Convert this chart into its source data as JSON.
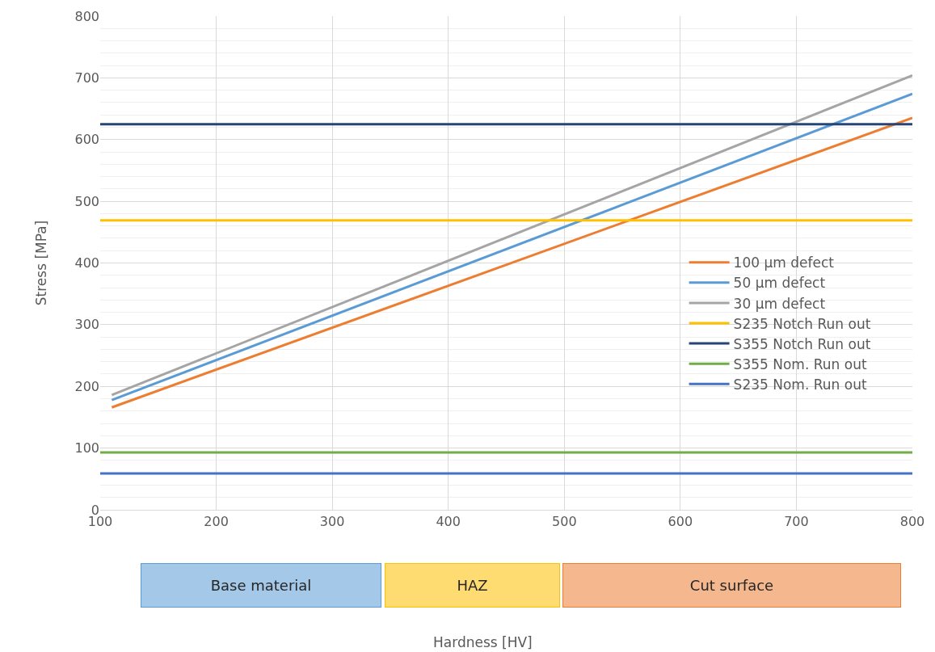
{
  "chart_data": {
    "type": "line",
    "ylabel": "Stress [MPa]",
    "xlim": [
      100,
      800
    ],
    "xticks": [
      100,
      200,
      300,
      400,
      500,
      600,
      700,
      800
    ],
    "ylim": [
      0,
      800
    ],
    "yticks": [
      0,
      100,
      200,
      300,
      400,
      500,
      600,
      700,
      800
    ],
    "grid": true,
    "legend": "right",
    "marker": "none",
    "line_style": "solid",
    "series": [
      {
        "name": "100 µm defect",
        "color": "#ed7d31",
        "x": [
          110,
          800
        ],
        "values": [
          166,
          635
        ]
      },
      {
        "name": "50 µm defect",
        "color": "#5b9bd5",
        "x": [
          110,
          800
        ],
        "values": [
          178,
          674
        ]
      },
      {
        "name": "30 µm defect",
        "color": "#a5a5a5",
        "x": [
          110,
          800
        ],
        "values": [
          186,
          704
        ]
      },
      {
        "name": "S235 Notch Run out",
        "color": "#ffc000",
        "x": [
          100,
          800
        ],
        "values": [
          469,
          469
        ]
      },
      {
        "name": "S355 Notch Run out",
        "color": "#264478",
        "x": [
          100,
          800
        ],
        "values": [
          625,
          625
        ]
      },
      {
        "name": "S355 Nom. Run out",
        "color": "#70ad47",
        "x": [
          100,
          800
        ],
        "values": [
          93,
          93
        ]
      },
      {
        "name": "S235 Nom. Run out",
        "color": "#4472c4",
        "x": [
          100,
          800
        ],
        "values": [
          59,
          59
        ]
      }
    ],
    "annotations": [
      "Base material",
      "HAZ",
      "Cut surface",
      "Hardness [HV]"
    ]
  }
}
